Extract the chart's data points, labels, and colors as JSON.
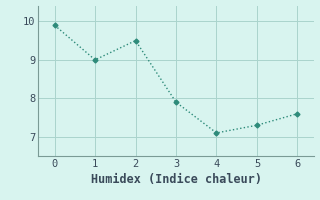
{
  "x": [
    0,
    1,
    2,
    3,
    4,
    5,
    6
  ],
  "y": [
    9.9,
    9.0,
    9.5,
    7.9,
    7.1,
    7.3,
    7.6
  ],
  "line_color": "#2e8b7a",
  "marker": "D",
  "marker_size": 2.5,
  "xlabel": "Humidex (Indice chaleur)",
  "xlim": [
    -0.4,
    6.4
  ],
  "ylim": [
    6.5,
    10.4
  ],
  "yticks": [
    7,
    8,
    9,
    10
  ],
  "xticks": [
    0,
    1,
    2,
    3,
    4,
    5,
    6
  ],
  "bg_color": "#d8f4ef",
  "grid_color": "#aad4cc",
  "axis_color": "#7a9a95",
  "font_color": "#3a4a5a",
  "xlabel_fontsize": 8.5,
  "tick_fontsize": 7.5,
  "line_width": 1.0,
  "line_style": ":"
}
